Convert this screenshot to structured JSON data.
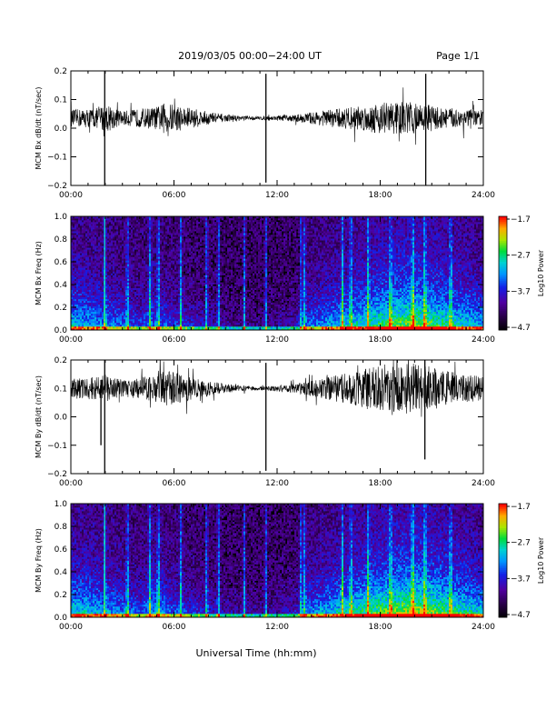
{
  "header": {
    "title": "2019/03/05  00:00−24:00 UT",
    "page": "Page 1/1"
  },
  "footer": {
    "xlabel": "Universal Time (hh:mm)"
  },
  "chart_data": [
    {
      "type": "line",
      "ylabel": "MCM Bx dB/dt (nT/sec)",
      "xlabel": "",
      "xlim": [
        0,
        24
      ],
      "ylim": [
        -0.2,
        0.2
      ],
      "xticks": [
        "00:00",
        "06:00",
        "12:00",
        "18:00",
        "24:00"
      ],
      "yticks": [
        "−0.2",
        "−0.1",
        "0.0",
        "0.1",
        "0.2"
      ],
      "baseline": 0.035,
      "envelope": [
        {
          "x": 0,
          "y": 0.03
        },
        {
          "x": 1.5,
          "y": 0.035
        },
        {
          "x": 2,
          "y": 0.05
        },
        {
          "x": 3,
          "y": 0.025
        },
        {
          "x": 5,
          "y": 0.04
        },
        {
          "x": 5.5,
          "y": 0.055
        },
        {
          "x": 7,
          "y": 0.035
        },
        {
          "x": 9,
          "y": 0.012
        },
        {
          "x": 11,
          "y": 0.006
        },
        {
          "x": 13,
          "y": 0.012
        },
        {
          "x": 15,
          "y": 0.03
        },
        {
          "x": 17,
          "y": 0.045
        },
        {
          "x": 18.5,
          "y": 0.06
        },
        {
          "x": 20,
          "y": 0.055
        },
        {
          "x": 22,
          "y": 0.035
        },
        {
          "x": 24,
          "y": 0.03
        }
      ],
      "spikes": [
        {
          "x": 1.97,
          "y_min": -0.2,
          "y_max": 0.2
        },
        {
          "x": 11.35,
          "y_min": -0.19,
          "y_max": 0.19
        },
        {
          "x": 20.65,
          "y_min": -0.2,
          "y_max": 0.19
        }
      ]
    },
    {
      "type": "heatmap",
      "ylabel": "MCM Bx Freq (Hz)",
      "xlim": [
        0,
        24
      ],
      "ylim": [
        0,
        1
      ],
      "xticks": [
        "00:00",
        "06:00",
        "12:00",
        "18:00",
        "24:00"
      ],
      "yticks": [
        "0.0",
        "0.2",
        "0.4",
        "0.6",
        "0.8",
        "1.0"
      ],
      "colorbar": {
        "label": "Log10 Power",
        "ticks": [
          "−1.7",
          "−2.7",
          "−3.7",
          "−4.7"
        ],
        "min": -4.7,
        "max": -1.7
      },
      "activity": [
        {
          "x": 0,
          "level": 0.6
        },
        {
          "x": 1,
          "level": 0.55
        },
        {
          "x": 2,
          "level": 0.5
        },
        {
          "x": 4,
          "level": 0.35
        },
        {
          "x": 5,
          "level": 0.45
        },
        {
          "x": 6,
          "level": 0.35
        },
        {
          "x": 9,
          "level": 0.15
        },
        {
          "x": 11,
          "level": 0.1
        },
        {
          "x": 13,
          "level": 0.2
        },
        {
          "x": 14,
          "level": 0.45
        },
        {
          "x": 16,
          "level": 0.6
        },
        {
          "x": 18,
          "level": 0.75
        },
        {
          "x": 20,
          "level": 0.85
        },
        {
          "x": 22,
          "level": 0.7
        },
        {
          "x": 24,
          "level": 0.55
        }
      ],
      "vertical_streaks": [
        1.97,
        3.3,
        4.6,
        5.1,
        6.4,
        7.9,
        8.6,
        10.1,
        11.35,
        13.4,
        13.6,
        15.8,
        16.3,
        17.3,
        18.6,
        19.9,
        20.6,
        22.1
      ]
    },
    {
      "type": "line",
      "ylabel": "MCM By dB/dt (nT/sec)",
      "xlabel": "",
      "xlim": [
        0,
        24
      ],
      "ylim": [
        -0.2,
        0.2
      ],
      "xticks": [
        "00:00",
        "06:00",
        "12:00",
        "18:00",
        "24:00"
      ],
      "yticks": [
        "−0.2",
        "−0.1",
        "0.0",
        "0.1",
        "0.2"
      ],
      "baseline": 0.1,
      "envelope": [
        {
          "x": 0,
          "y": 0.035
        },
        {
          "x": 1.5,
          "y": 0.04
        },
        {
          "x": 2,
          "y": 0.05
        },
        {
          "x": 3,
          "y": 0.03
        },
        {
          "x": 5,
          "y": 0.05
        },
        {
          "x": 5.5,
          "y": 0.065
        },
        {
          "x": 7,
          "y": 0.04
        },
        {
          "x": 9,
          "y": 0.015
        },
        {
          "x": 11,
          "y": 0.006
        },
        {
          "x": 13,
          "y": 0.015
        },
        {
          "x": 15,
          "y": 0.04
        },
        {
          "x": 17,
          "y": 0.07
        },
        {
          "x": 18.5,
          "y": 0.09
        },
        {
          "x": 20,
          "y": 0.09
        },
        {
          "x": 22,
          "y": 0.06
        },
        {
          "x": 24,
          "y": 0.04
        }
      ],
      "spikes": [
        {
          "x": 1.75,
          "y_min": -0.1,
          "y_max": 0.13
        },
        {
          "x": 1.97,
          "y_min": -0.2,
          "y_max": 0.2
        },
        {
          "x": 11.35,
          "y_min": -0.19,
          "y_max": 0.19
        },
        {
          "x": 20.6,
          "y_min": -0.15,
          "y_max": 0.2
        }
      ]
    },
    {
      "type": "heatmap",
      "ylabel": "MCM By Freq (Hz)",
      "xlim": [
        0,
        24
      ],
      "ylim": [
        0,
        1
      ],
      "xticks": [
        "00:00",
        "06:00",
        "12:00",
        "18:00",
        "24:00"
      ],
      "yticks": [
        "0.0",
        "0.2",
        "0.4",
        "0.6",
        "0.8",
        "1.0"
      ],
      "colorbar": {
        "label": "Log10 Power",
        "ticks": [
          "−1.7",
          "−2.7",
          "−3.7",
          "−4.7"
        ],
        "min": -4.7,
        "max": -1.7
      },
      "activity": [
        {
          "x": 0,
          "level": 0.65
        },
        {
          "x": 1,
          "level": 0.6
        },
        {
          "x": 2,
          "level": 0.55
        },
        {
          "x": 4,
          "level": 0.4
        },
        {
          "x": 5,
          "level": 0.55
        },
        {
          "x": 6,
          "level": 0.4
        },
        {
          "x": 9,
          "level": 0.2
        },
        {
          "x": 11,
          "level": 0.15
        },
        {
          "x": 13,
          "level": 0.25
        },
        {
          "x": 14,
          "level": 0.5
        },
        {
          "x": 16,
          "level": 0.65
        },
        {
          "x": 18,
          "level": 0.8
        },
        {
          "x": 20,
          "level": 0.9
        },
        {
          "x": 22,
          "level": 0.75
        },
        {
          "x": 24,
          "level": 0.6
        }
      ],
      "vertical_streaks": [
        1.97,
        3.3,
        4.6,
        5.1,
        6.4,
        7.9,
        8.6,
        10.1,
        11.35,
        13.4,
        13.6,
        15.8,
        16.3,
        17.3,
        18.6,
        19.9,
        20.6,
        22.1
      ]
    }
  ]
}
